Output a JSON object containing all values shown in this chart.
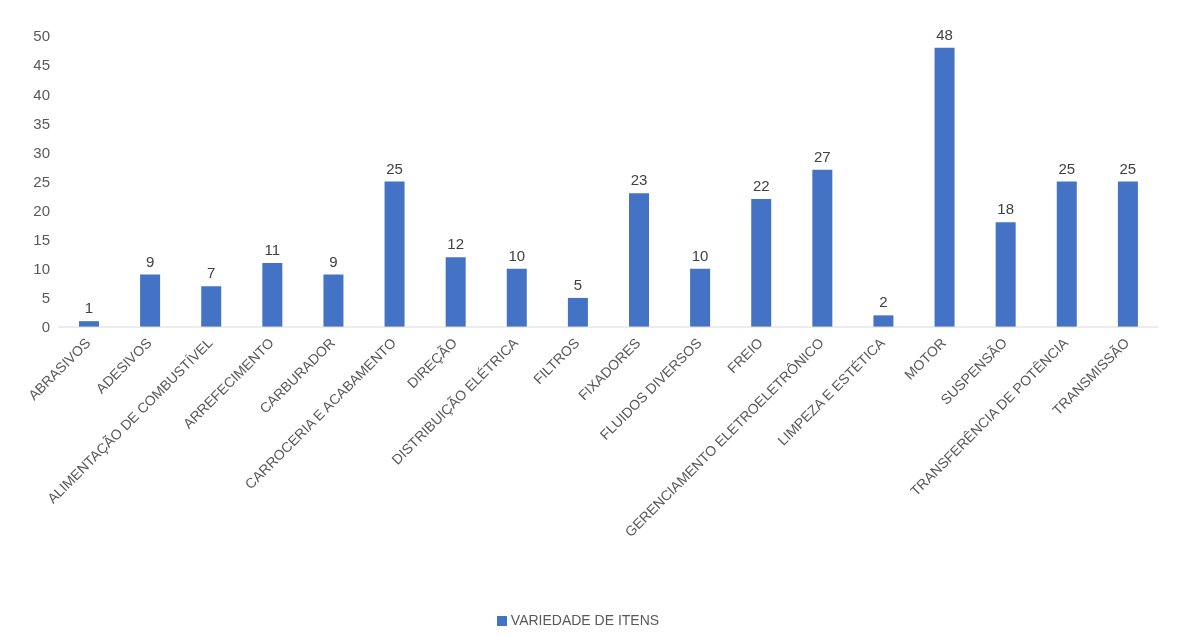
{
  "chart_data": {
    "type": "bar",
    "categories": [
      "ABRASIVOS",
      "ADESIVOS",
      "ALIMENTAÇÃO DE COMBUSTÍVEL",
      "ARREFECIMENTO",
      "CARBURADOR",
      "CARROCERIA E ACABAMENTO",
      "DIREÇÃO",
      "DISTRIBUIÇÃO ELÉTRICA",
      "FILTROS",
      "FIXADORES",
      "FLUIDOS DIVERSOS",
      "FREIO",
      "GERENCIAMENTO ELETROELETRÔNICO",
      "LIMPEZA E ESTÉTICA",
      "MOTOR",
      "SUSPENSÃO",
      "TRANSFERÊNCIA DE POTÊNCIA",
      "TRANSMISSÃO"
    ],
    "series": [
      {
        "name": "VARIEDADE DE ITENS",
        "color": "#4472c4",
        "values": [
          1,
          9,
          7,
          11,
          9,
          25,
          12,
          10,
          5,
          23,
          10,
          22,
          27,
          2,
          48,
          18,
          25,
          25
        ]
      }
    ],
    "ylim": [
      0,
      50
    ],
    "yticks": [
      0,
      5,
      10,
      15,
      20,
      25,
      30,
      35,
      40,
      45,
      50
    ],
    "data_labels": true,
    "legend": "bottom"
  }
}
